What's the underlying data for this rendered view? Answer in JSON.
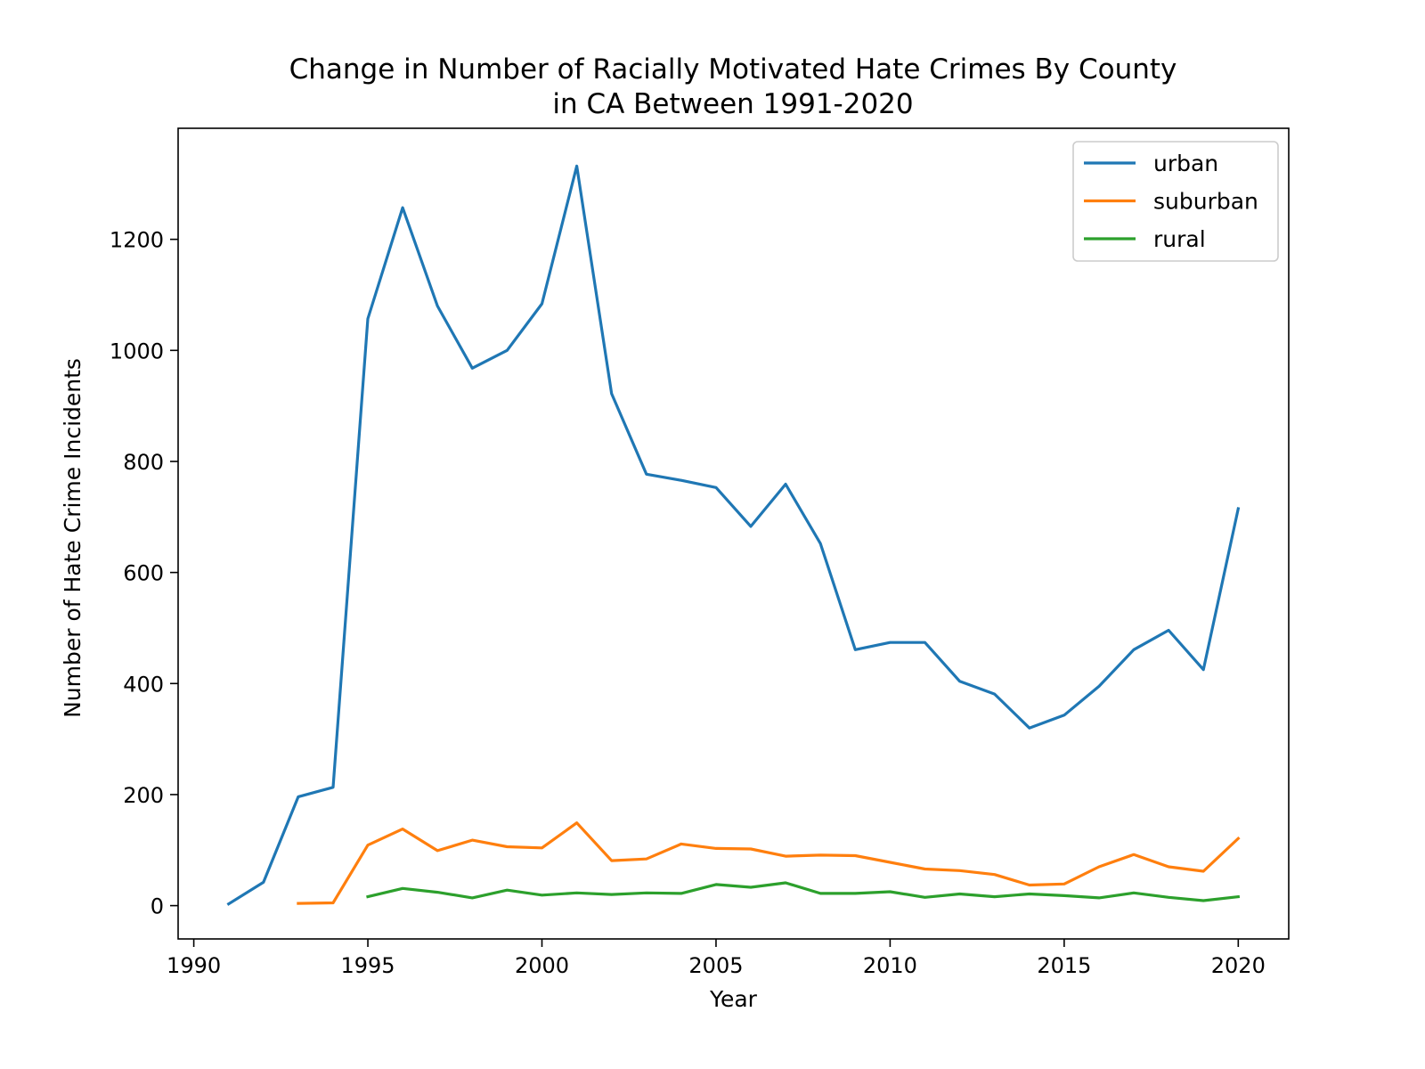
{
  "chart_data": {
    "type": "line",
    "title_lines": [
      "Change in Number of Racially Motivated Hate Crimes By County",
      "in CA Between 1991-2020"
    ],
    "xlabel": "Year",
    "ylabel": "Number of Hate Crime Incidents",
    "xlim": [
      1989.55,
      2021.45
    ],
    "ylim": [
      -60,
      1400
    ],
    "xticks": [
      1990,
      1995,
      2000,
      2005,
      2010,
      2015,
      2020
    ],
    "yticks": [
      0,
      200,
      400,
      600,
      800,
      1000,
      1200
    ],
    "grid": false,
    "legend_position": "top-right",
    "series": [
      {
        "name": "urban",
        "color": "#1f77b4",
        "x": [
          1991,
          1992,
          1993,
          1994,
          1995,
          1996,
          1997,
          1998,
          1999,
          2000,
          2001,
          2002,
          2003,
          2004,
          2005,
          2006,
          2007,
          2008,
          2009,
          2010,
          2011,
          2012,
          2013,
          2014,
          2015,
          2016,
          2017,
          2018,
          2019,
          2020
        ],
        "y": [
          3,
          42,
          196,
          213,
          1057,
          1257,
          1080,
          968,
          1000,
          1084,
          1332,
          922,
          777,
          766,
          753,
          683,
          759,
          652,
          461,
          474,
          474,
          404,
          381,
          320,
          343,
          395,
          461,
          496,
          425,
          715
        ]
      },
      {
        "name": "suburban",
        "color": "#ff7f0e",
        "x": [
          1993,
          1994,
          1995,
          1996,
          1997,
          1998,
          1999,
          2000,
          2001,
          2002,
          2003,
          2004,
          2005,
          2006,
          2007,
          2008,
          2009,
          2010,
          2011,
          2012,
          2013,
          2014,
          2015,
          2016,
          2017,
          2018,
          2019,
          2020
        ],
        "y": [
          4,
          5,
          109,
          138,
          99,
          118,
          106,
          104,
          149,
          81,
          84,
          111,
          103,
          102,
          89,
          91,
          90,
          78,
          66,
          63,
          56,
          37,
          39,
          70,
          92,
          70,
          62,
          121
        ]
      },
      {
        "name": "rural",
        "color": "#2ca02c",
        "x": [
          1995,
          1996,
          1997,
          1998,
          1999,
          2000,
          2001,
          2002,
          2003,
          2004,
          2005,
          2006,
          2007,
          2008,
          2009,
          2010,
          2011,
          2012,
          2013,
          2014,
          2015,
          2016,
          2017,
          2018,
          2019,
          2020
        ],
        "y": [
          16,
          31,
          24,
          14,
          28,
          19,
          23,
          20,
          23,
          22,
          38,
          33,
          41,
          22,
          22,
          25,
          15,
          21,
          16,
          21,
          18,
          14,
          23,
          15,
          9,
          16
        ]
      }
    ]
  }
}
